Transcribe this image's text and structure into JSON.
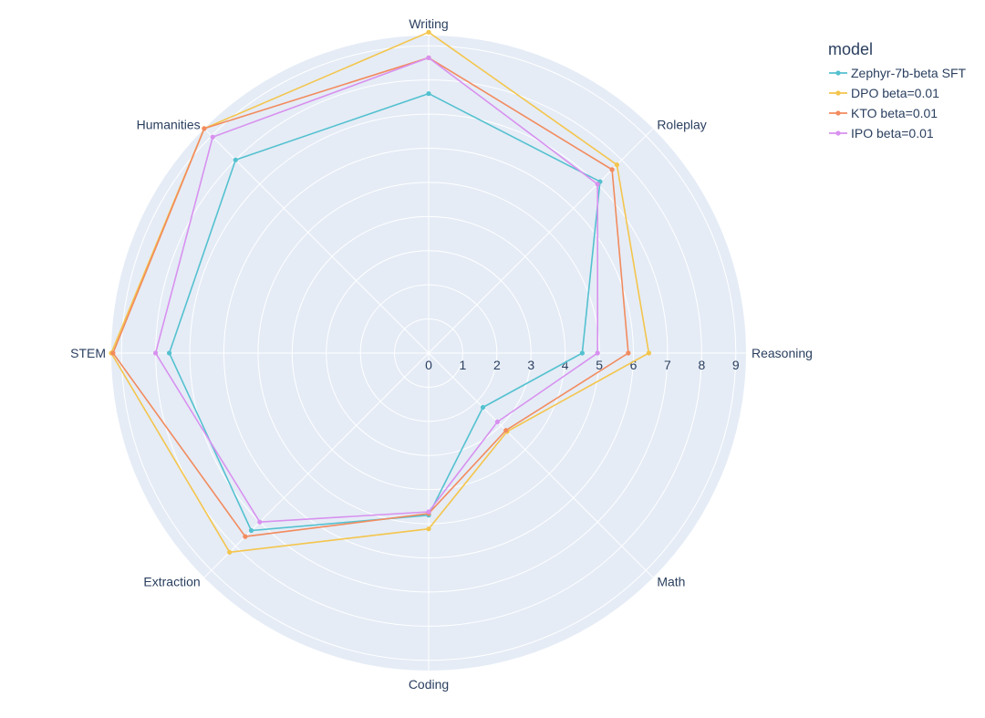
{
  "chart_data": {
    "type": "radar",
    "categories": [
      "Writing",
      "Roleplay",
      "Reasoning",
      "Math",
      "Coding",
      "Extraction",
      "STEM",
      "Humanities"
    ],
    "radial_ticks": [
      "0",
      "1",
      "2",
      "3",
      "4",
      "5",
      "6",
      "7",
      "8",
      "9"
    ],
    "rlim": [
      0,
      9.3
    ],
    "grid": true,
    "legend_title": "model",
    "legend_position": "top-right",
    "series": [
      {
        "name": "Zephyr-7b-beta SFT",
        "color": "#54c1cf",
        "values": [
          7.6,
          7.1,
          4.5,
          2.25,
          4.75,
          7.35,
          7.6,
          8.0
        ]
      },
      {
        "name": "DPO beta=0.01",
        "color": "#f4c54c",
        "values": [
          9.4,
          7.8,
          6.45,
          3.25,
          5.15,
          8.25,
          9.3,
          9.3
        ]
      },
      {
        "name": "KTO beta=0.01",
        "color": "#f28b5e",
        "values": [
          8.65,
          7.6,
          5.85,
          3.2,
          4.7,
          7.6,
          9.25,
          9.3
        ]
      },
      {
        "name": "IPO beta=0.01",
        "color": "#d891ef",
        "values": [
          8.65,
          7.0,
          4.95,
          2.85,
          4.65,
          7.0,
          8.0,
          8.95
        ]
      }
    ]
  }
}
